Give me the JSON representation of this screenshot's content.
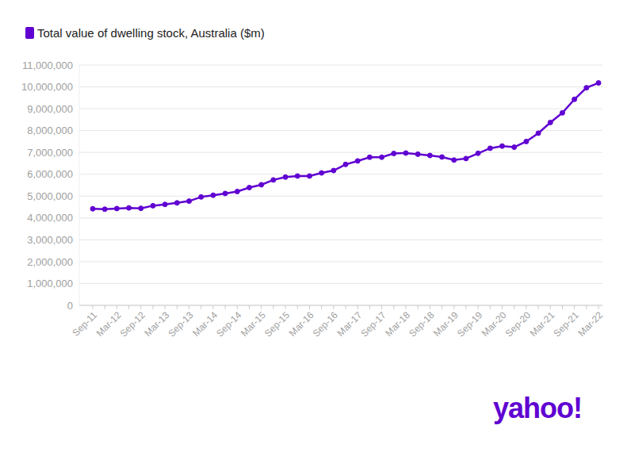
{
  "chart_data": {
    "type": "line",
    "logo": "yahoo!",
    "categories": [
      "Sep-11",
      null,
      "Mar-12",
      null,
      "Sep-12",
      null,
      "Mar-13",
      null,
      "Sep-13",
      null,
      "Mar-14",
      null,
      "Sep-14",
      null,
      "Mar-15",
      null,
      "Sep-15",
      null,
      "Mar-16",
      null,
      "Sep-16",
      null,
      "Mar-17",
      null,
      "Sep-17",
      null,
      "Mar-18",
      null,
      "Sep-18",
      null,
      "Mar-19",
      null,
      "Sep-19",
      null,
      "Mar-20",
      null,
      "Sep-20",
      null,
      "Mar-21",
      null,
      "Sep-21",
      null,
      "Mar-22"
    ],
    "series": [
      {
        "name": "Total value of dwelling stock, Australia ($m)",
        "color": "#6001d2",
        "marker": "circle",
        "values": [
          4420000,
          4400000,
          4430000,
          4460000,
          4440000,
          4560000,
          4620000,
          4690000,
          4770000,
          4960000,
          5040000,
          5120000,
          5210000,
          5390000,
          5520000,
          5740000,
          5870000,
          5920000,
          5920000,
          6060000,
          6170000,
          6450000,
          6610000,
          6780000,
          6780000,
          6950000,
          6970000,
          6920000,
          6860000,
          6790000,
          6650000,
          6720000,
          6960000,
          7190000,
          7290000,
          7240000,
          7500000,
          7880000,
          8370000,
          8810000,
          9430000,
          9960000,
          10180000
        ]
      }
    ],
    "ylim": [
      0,
      11000000
    ],
    "yticks": [
      0,
      {
        "value": 1000000,
        "label": "1,000,000"
      },
      {
        "value": 2000000,
        "label": "2,000,000"
      },
      {
        "value": 3000000,
        "label": "3,000,000"
      },
      {
        "value": 4000000,
        "label": "4,000,000"
      },
      {
        "value": 5000000,
        "label": "5,000,000"
      },
      {
        "value": 6000000,
        "label": "6,000,000"
      },
      {
        "value": 7000000,
        "label": "7,000,000"
      },
      {
        "value": 8000000,
        "label": "8,000,000"
      },
      {
        "value": 9000000,
        "label": "9,000,000"
      },
      {
        "value": 10000000,
        "label": "10,000,000"
      },
      {
        "value": 11000000,
        "label": "11,000,000"
      }
    ],
    "grid": true,
    "legend": "top-left"
  }
}
